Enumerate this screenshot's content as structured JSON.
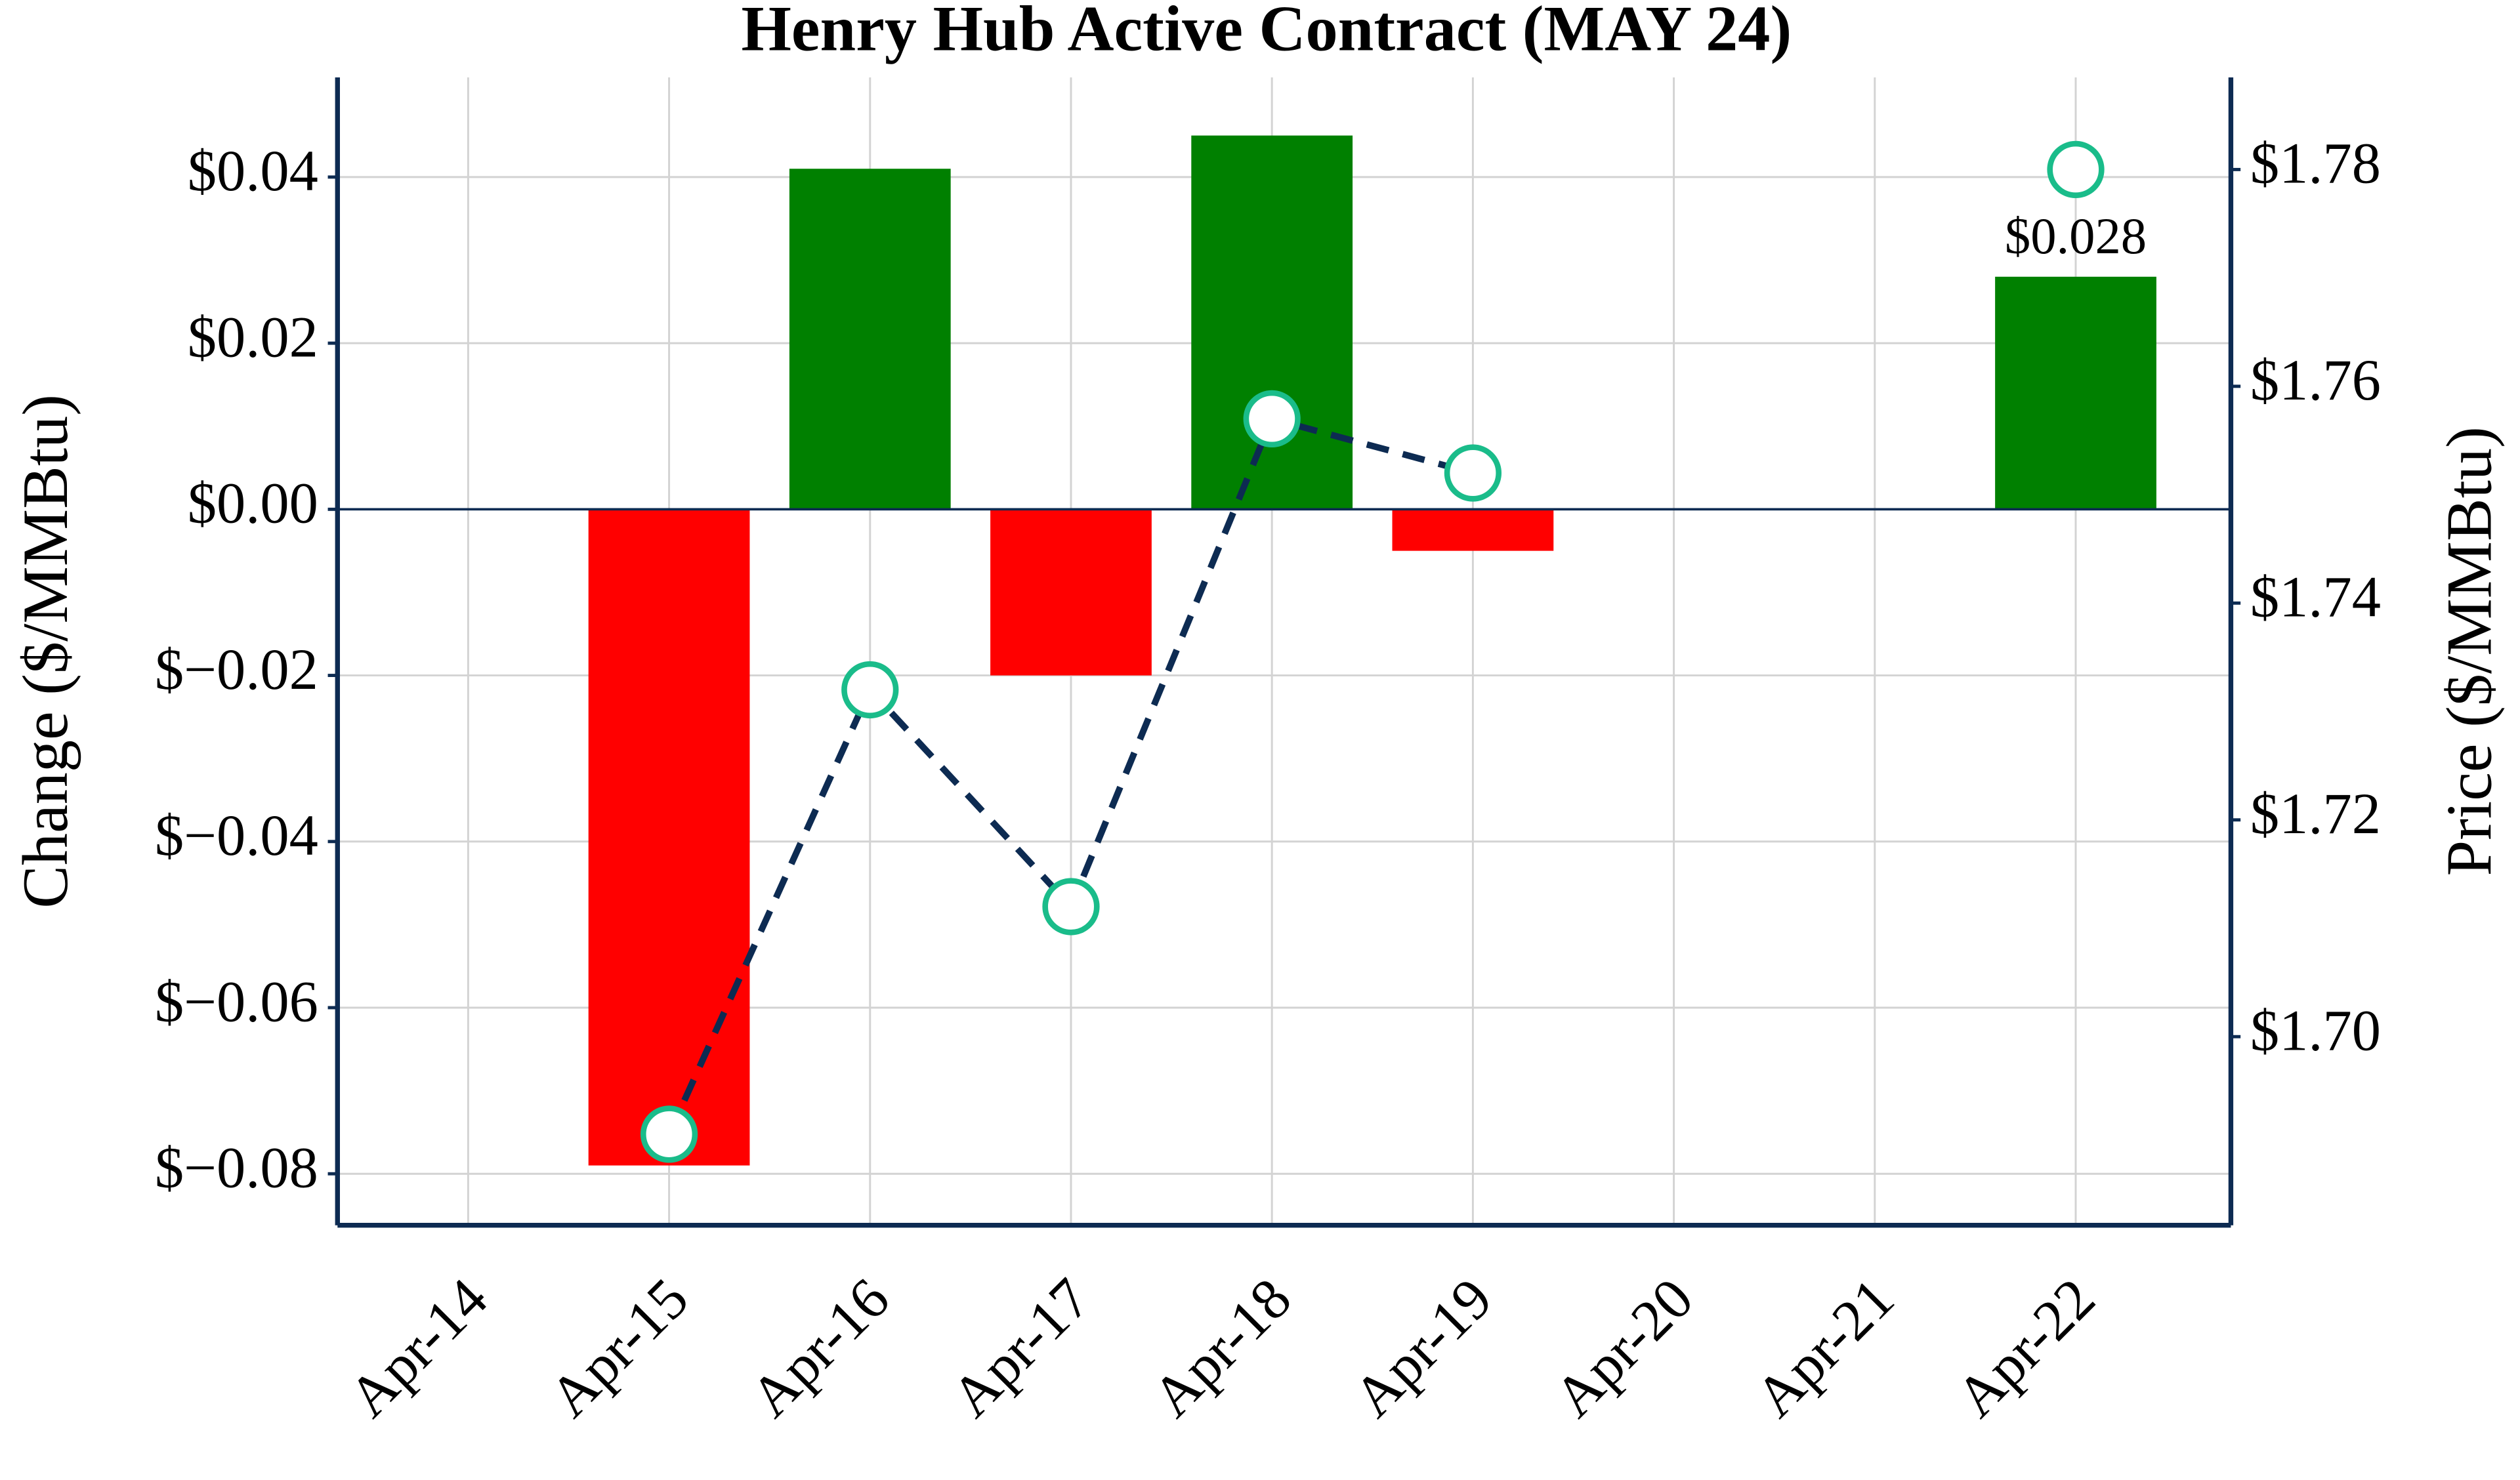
{
  "chart_data": {
    "type": "bar-line",
    "title": "Henry Hub Active Contract (MAY 24)",
    "y_label": "Change ($/MMBtu)",
    "y2_label": "Price ($/MMBtu)",
    "categories": [
      "Apr-14",
      "Apr-15",
      "Apr-16",
      "Apr-17",
      "Apr-18",
      "Apr-19",
      "Apr-20",
      "Apr-21",
      "Apr-22"
    ],
    "series": [
      {
        "type": "bar",
        "positive_color": "#008000",
        "negative_color": "#ff0000",
        "values": [
          null,
          -0.079,
          0.041,
          -0.02,
          0.045,
          -0.005,
          null,
          null,
          0.028
        ],
        "value_labels": [
          null,
          null,
          null,
          null,
          null,
          null,
          null,
          null,
          "$0.028"
        ]
      },
      {
        "type": "line",
        "axis": "y2",
        "color": "#0d2b52",
        "marker_color": "#1abc8a",
        "values": [
          null,
          1.691,
          1.732,
          1.712,
          1.757,
          1.752,
          null,
          null,
          1.78
        ]
      }
    ],
    "ylim": [
      -0.0862,
      0.052
    ],
    "yticks": [
      {
        "value": -0.08,
        "label": "$−0.08"
      },
      {
        "value": -0.06,
        "label": "$−0.06"
      },
      {
        "value": -0.04,
        "label": "$−0.04"
      },
      {
        "value": -0.02,
        "label": "$−0.02"
      },
      {
        "value": 0,
        "label": "$0.00"
      },
      {
        "value": 0.02,
        "label": "$0.02"
      },
      {
        "value": 0.04,
        "label": "$0.04"
      }
    ],
    "y2lim": [
      1.6826,
      1.7885
    ],
    "y2ticks": [
      {
        "value": 1.7,
        "label": "$1.70"
      },
      {
        "value": 1.72,
        "label": "$1.72"
      },
      {
        "value": 1.74,
        "label": "$1.74"
      },
      {
        "value": 1.76,
        "label": "$1.76"
      },
      {
        "value": 1.78,
        "label": "$1.78"
      }
    ],
    "grid": true
  }
}
